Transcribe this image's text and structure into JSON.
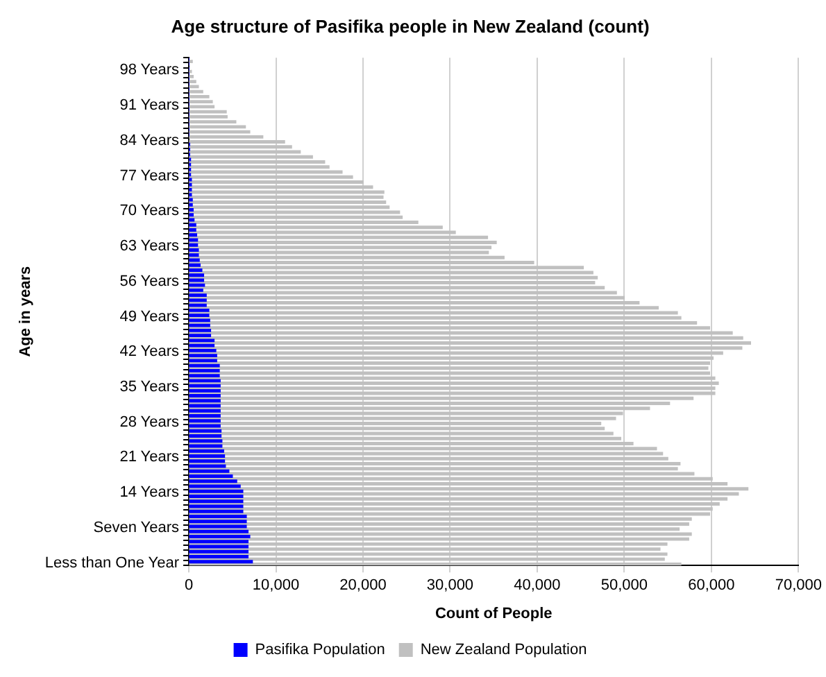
{
  "chart_data": {
    "type": "bar",
    "orientation": "horizontal",
    "title": "Age structure of Pasifika people in New Zealand (count)",
    "xlabel": "Count of People",
    "ylabel": "Age in years",
    "categories": [
      null,
      null,
      "98 Years",
      null,
      null,
      null,
      null,
      null,
      null,
      "91 Years",
      null,
      null,
      null,
      null,
      null,
      null,
      "84 Years",
      null,
      null,
      null,
      null,
      null,
      null,
      "77 Years",
      null,
      null,
      null,
      null,
      null,
      null,
      "70 Years",
      null,
      null,
      null,
      null,
      null,
      null,
      "63 Years",
      null,
      null,
      null,
      null,
      null,
      null,
      "56 Years",
      null,
      null,
      null,
      null,
      null,
      null,
      "49 Years",
      null,
      null,
      null,
      null,
      null,
      null,
      "42 Years",
      null,
      null,
      null,
      null,
      null,
      null,
      "35 Years",
      null,
      null,
      null,
      null,
      null,
      null,
      "28 Years",
      null,
      null,
      null,
      null,
      null,
      null,
      "21 Years",
      null,
      null,
      null,
      null,
      null,
      null,
      "14 Years",
      null,
      null,
      null,
      null,
      null,
      null,
      "Seven Years",
      null,
      null,
      null,
      null,
      null,
      null,
      "Less than One Year"
    ],
    "series": [
      {
        "name": "Pasifika Population",
        "color": "#0000ff",
        "values": [
          0,
          0,
          0,
          0,
          0,
          0,
          0,
          0,
          0,
          0,
          0,
          0,
          0,
          0,
          0,
          0,
          null,
          100,
          100,
          100,
          200,
          200,
          200,
          200,
          300,
          300,
          300,
          300,
          400,
          400,
          500,
          500,
          600,
          800,
          800,
          900,
          1000,
          1000,
          1100,
          1100,
          1200,
          1300,
          1500,
          1700,
          1700,
          1800,
          1600,
          2000,
          2000,
          2000,
          2300,
          2300,
          2400,
          2400,
          2500,
          2500,
          2900,
          2900,
          3100,
          3200,
          3200,
          3500,
          3500,
          3500,
          3600,
          3600,
          3600,
          3600,
          3600,
          3600,
          3600,
          3600,
          3600,
          3600,
          3700,
          3700,
          3800,
          3800,
          4000,
          4100,
          4100,
          4200,
          4600,
          5000,
          5500,
          5900,
          6200,
          6200,
          6200,
          6200,
          6200,
          6600,
          6600,
          6600,
          6800,
          7000,
          6800,
          6800,
          6800,
          6800,
          7300
        ]
      },
      {
        "name": "New Zealand Population",
        "color": "#c0c0c0",
        "values": [
          400,
          null,
          300,
          500,
          800,
          1100,
          1600,
          2300,
          2700,
          2900,
          4300,
          4400,
          5400,
          6500,
          7000,
          8500,
          11000,
          11800,
          12800,
          14200,
          15600,
          16100,
          17600,
          18800,
          20000,
          21100,
          22400,
          22300,
          22600,
          23000,
          24200,
          24500,
          26300,
          29100,
          30600,
          34300,
          35300,
          34700,
          34400,
          36200,
          39600,
          45300,
          46400,
          46900,
          46600,
          47700,
          49100,
          50000,
          51700,
          53900,
          56100,
          56500,
          58300,
          59800,
          62400,
          63600,
          64500,
          63500,
          61300,
          60200,
          59800,
          59600,
          59800,
          60400,
          60800,
          60400,
          60400,
          57900,
          55200,
          52900,
          49800,
          49000,
          47300,
          47700,
          48700,
          49600,
          51000,
          53700,
          54400,
          55000,
          56400,
          56100,
          58000,
          60100,
          61800,
          64200,
          63100,
          61800,
          60900,
          60100,
          59800,
          57700,
          57400,
          56300,
          57700,
          57400,
          54900,
          54100,
          54900,
          54600,
          56500
        ]
      }
    ],
    "xlim": [
      0,
      70000
    ],
    "xticks": [
      0,
      {
        "value": 10000,
        "label": "10,000"
      },
      {
        "value": 20000,
        "label": "20,000"
      },
      {
        "value": 30000,
        "label": "30,000"
      },
      {
        "value": 40000,
        "label": "40,000"
      },
      {
        "value": 50000,
        "label": "50,000"
      },
      {
        "value": 60000,
        "label": "60,000"
      },
      {
        "value": 70000,
        "label": "70,000"
      }
    ],
    "grid": "x",
    "legend": "bottom"
  }
}
